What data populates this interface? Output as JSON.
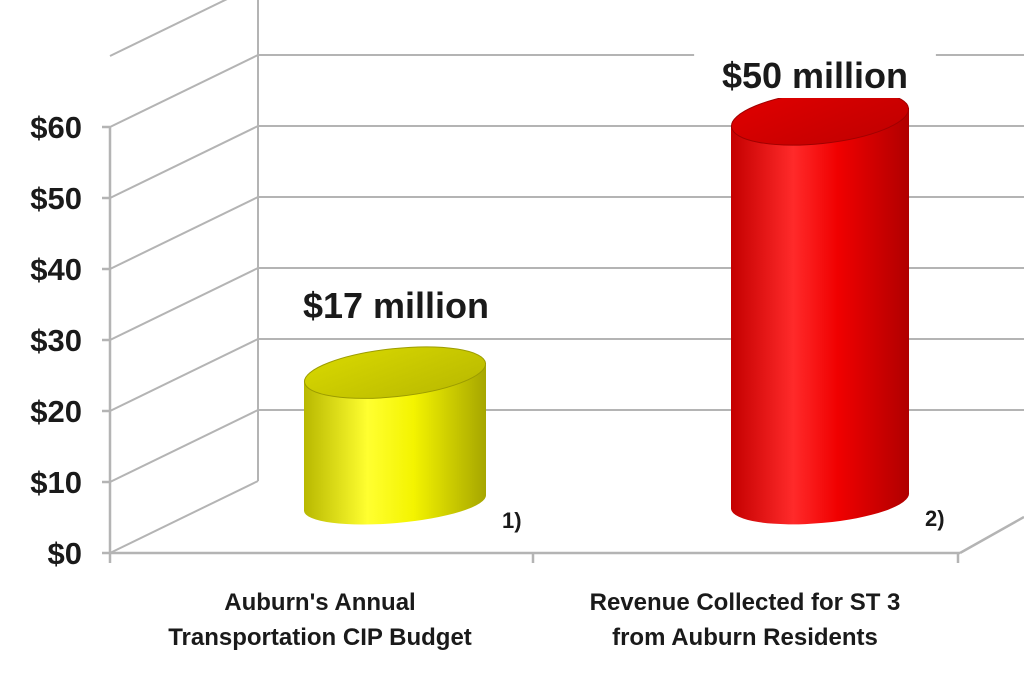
{
  "chart_data": {
    "type": "bar",
    "style": "3d-cylinder",
    "categories": [
      [
        "Auburn's Annual",
        "Transportation CIP Budget"
      ],
      [
        "Revenue Collected for ST 3",
        "from Auburn Residents"
      ]
    ],
    "values": [
      17,
      50
    ],
    "colors": [
      "#f2f200",
      "#f00000"
    ],
    "data_labels": [
      "$17 million",
      "$50 million"
    ],
    "footnotes": [
      "1)",
      "2)"
    ],
    "y_ticks": [
      "$0",
      "$10",
      "$20",
      "$30",
      "$40",
      "$50",
      "$60"
    ],
    "ylim": [
      0,
      60
    ],
    "grid": true,
    "legend": "none"
  }
}
